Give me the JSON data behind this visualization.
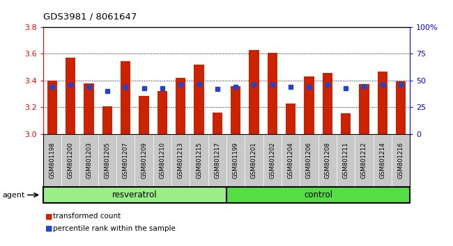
{
  "title": "GDS3981 / 8061647",
  "categories": [
    "GSM801198",
    "GSM801200",
    "GSM801203",
    "GSM801205",
    "GSM801207",
    "GSM801209",
    "GSM801210",
    "GSM801213",
    "GSM801215",
    "GSM801217",
    "GSM801199",
    "GSM801201",
    "GSM801202",
    "GSM801204",
    "GSM801206",
    "GSM801208",
    "GSM801211",
    "GSM801212",
    "GSM801214",
    "GSM801216"
  ],
  "red_values": [
    3.4,
    3.57,
    3.38,
    3.21,
    3.545,
    3.285,
    3.32,
    3.42,
    3.52,
    3.16,
    3.36,
    3.63,
    3.61,
    3.23,
    3.43,
    3.455,
    3.155,
    3.375,
    3.465,
    3.395
  ],
  "blue_pct": [
    44,
    46,
    44,
    40,
    44,
    43,
    43,
    46,
    47,
    42,
    44,
    46,
    46,
    44,
    44,
    46,
    43,
    45,
    46,
    46
  ],
  "resveratrol_count": 10,
  "control_count": 10,
  "resveratrol_label": "resveratrol",
  "control_label": "control",
  "agent_label": "agent",
  "ymin": 3.0,
  "ymax": 3.8,
  "yticks": [
    3.0,
    3.2,
    3.4,
    3.6,
    3.8
  ],
  "right_yticks": [
    0,
    25,
    50,
    75,
    100
  ],
  "right_ytick_labels": [
    "0",
    "25",
    "50",
    "75",
    "100%"
  ],
  "bar_color": "#cc2200",
  "blue_color": "#2244cc",
  "bg_color": "#ffffff",
  "tick_area_color": "#c8c8c8",
  "resveratrol_color": "#99ee88",
  "control_color": "#55dd44",
  "legend_red": "transformed count",
  "legend_blue": "percentile rank within the sample"
}
